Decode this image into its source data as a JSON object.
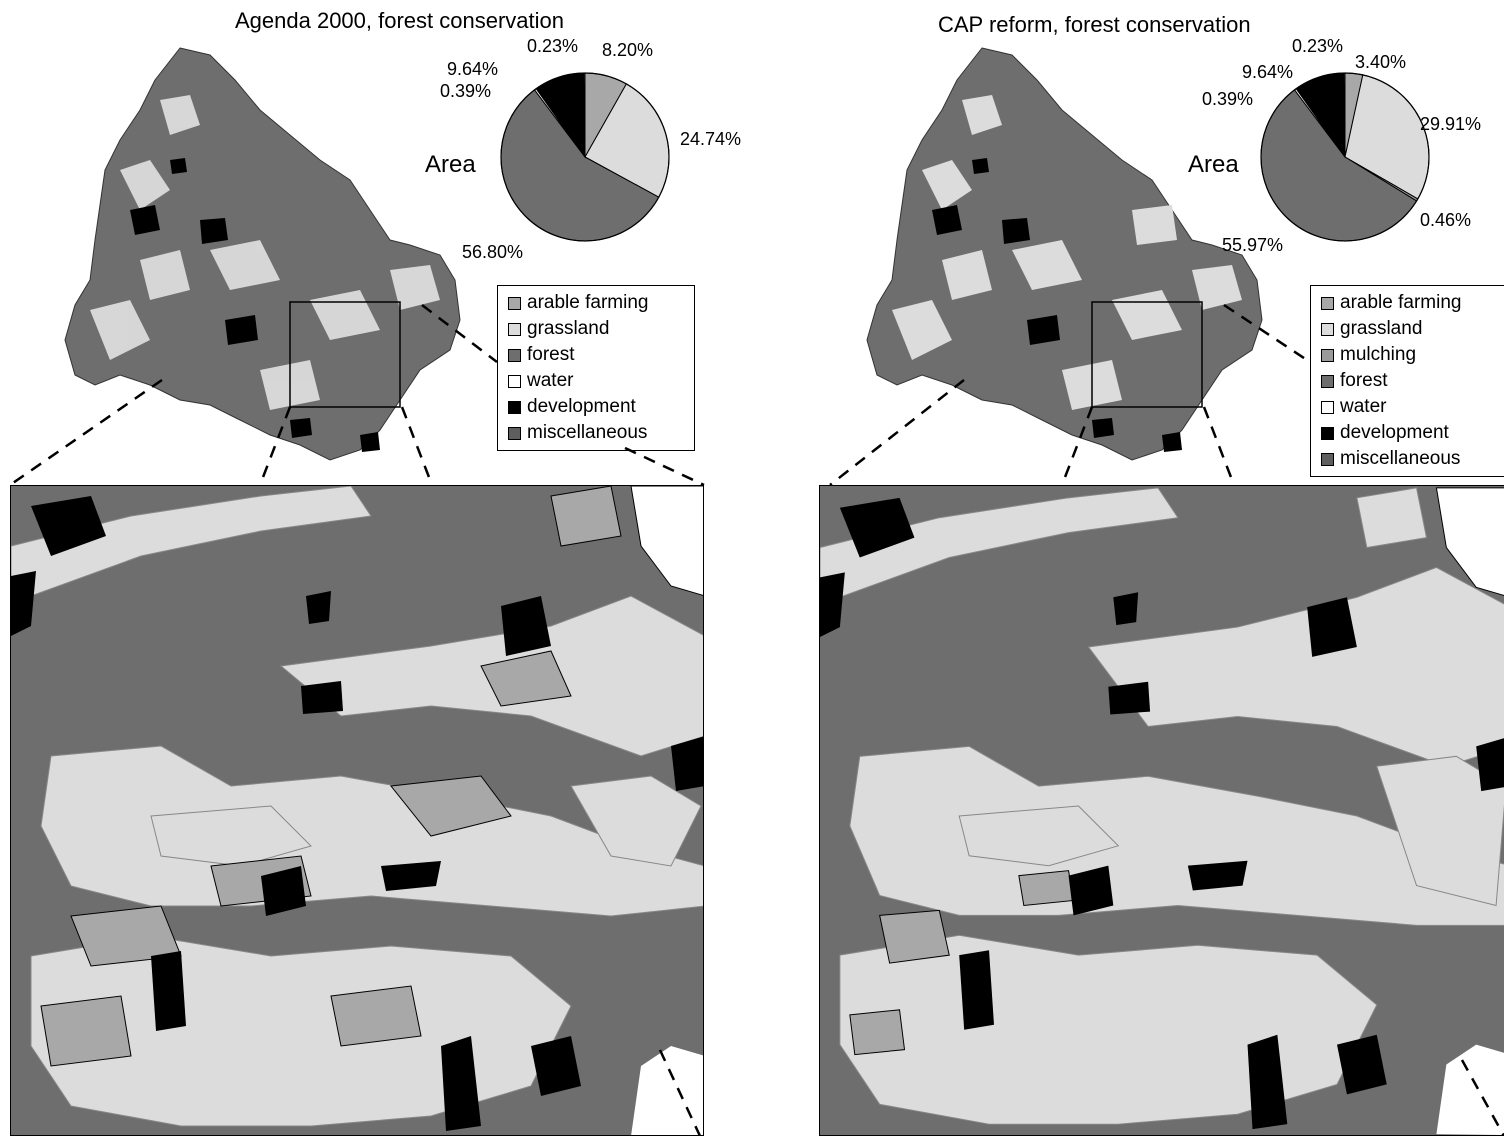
{
  "colors": {
    "arable_farming": "#a8a8a8",
    "grassland": "#dcdcdc",
    "mulching": "#9a9a9a",
    "forest": "#6e6e6e",
    "water": "#ffffff",
    "development": "#000000",
    "miscellaneous": "#5e5e5e"
  },
  "panels": [
    {
      "title": "Agenda 2000, forest conservation",
      "pie_label": "Area",
      "legend": [
        "arable farming",
        "grassland",
        "forest",
        "water",
        "development",
        "miscellaneous"
      ]
    },
    {
      "title": "CAP reform, forest conservation",
      "pie_label": "Area",
      "legend": [
        "arable farming",
        "grassland",
        "mulching",
        "forest",
        "water",
        "development",
        "miscellaneous"
      ]
    }
  ],
  "chart_data": [
    {
      "type": "pie",
      "title": "Agenda 2000, forest conservation",
      "categories": [
        "arable farming",
        "grassland",
        "forest",
        "water",
        "development",
        "miscellaneous"
      ],
      "values": [
        8.2,
        24.74,
        56.8,
        0.39,
        9.64,
        0.23
      ],
      "labels": [
        "8.20%",
        "24.74%",
        "56.80%",
        "0.39%",
        "9.64%",
        "0.23%"
      ]
    },
    {
      "type": "pie",
      "title": "CAP reform, forest conservation",
      "categories": [
        "arable farming",
        "grassland",
        "mulching",
        "forest",
        "water",
        "development",
        "miscellaneous"
      ],
      "values": [
        3.4,
        29.91,
        0.46,
        55.97,
        0.39,
        9.64,
        0.23
      ],
      "labels": [
        "3.40%",
        "29.91%",
        "0.46%",
        "55.97%",
        "0.39%",
        "9.64%",
        "0.23%"
      ]
    }
  ]
}
